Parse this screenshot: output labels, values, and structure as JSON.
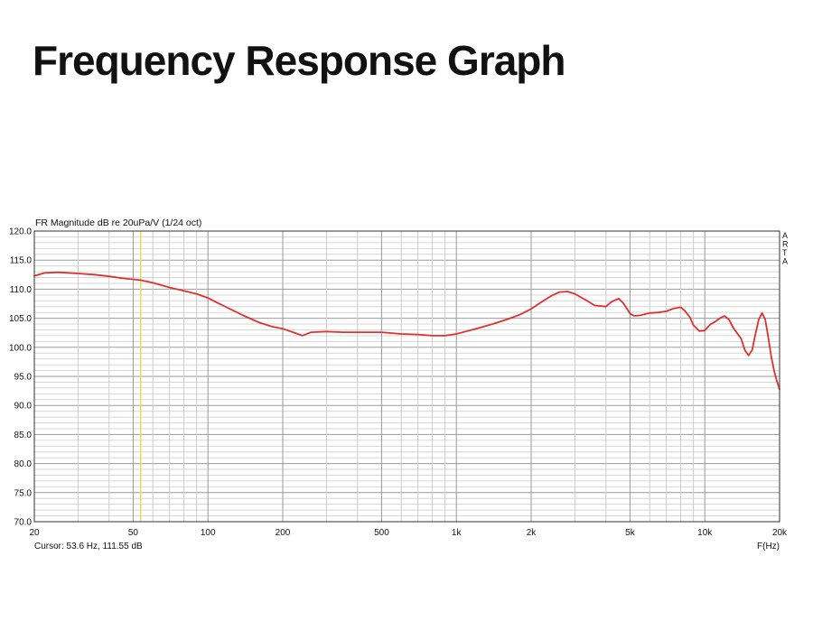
{
  "page": {
    "title": "Frequency Response Graph"
  },
  "chart_data": {
    "type": "line",
    "title": "FR Magnitude dB re 20uPa/V (1/24 oct)",
    "xlabel": "F(Hz)",
    "ylabel": "",
    "x_scale": "log",
    "xlim": [
      20,
      20000
    ],
    "ylim": [
      70,
      120
    ],
    "grid": true,
    "x_ticks": [
      {
        "value": 20,
        "label": "20"
      },
      {
        "value": 50,
        "label": "50"
      },
      {
        "value": 100,
        "label": "100"
      },
      {
        "value": 200,
        "label": "200"
      },
      {
        "value": 500,
        "label": "500"
      },
      {
        "value": 1000,
        "label": "1k"
      },
      {
        "value": 2000,
        "label": "2k"
      },
      {
        "value": 5000,
        "label": "5k"
      },
      {
        "value": 10000,
        "label": "10k"
      },
      {
        "value": 20000,
        "label": "20k"
      }
    ],
    "y_ticks": [
      {
        "value": 120,
        "label": "120.0"
      },
      {
        "value": 115,
        "label": "115.0"
      },
      {
        "value": 110,
        "label": "110.0"
      },
      {
        "value": 105,
        "label": "105.0"
      },
      {
        "value": 100,
        "label": "100.0"
      },
      {
        "value": 95,
        "label": "95.0"
      },
      {
        "value": 90,
        "label": "90.0"
      },
      {
        "value": 85,
        "label": "85.0"
      },
      {
        "value": 80,
        "label": "80.0"
      },
      {
        "value": 75,
        "label": "75.0"
      },
      {
        "value": 70,
        "label": "70.0"
      }
    ],
    "side_label": [
      "A",
      "R",
      "T",
      "A"
    ],
    "cursor": {
      "x": 53.6,
      "y": 111.55,
      "text": "Cursor: 53.6 Hz, 111.55 dB",
      "color": "#e8e050"
    },
    "series": [
      {
        "color": "#e03030",
        "x": [
          20,
          22,
          25,
          30,
          35,
          40,
          45,
          50,
          53.6,
          60,
          70,
          80,
          90,
          100,
          110,
          120,
          140,
          160,
          180,
          200,
          220,
          240,
          260,
          300,
          350,
          400,
          450,
          500,
          600,
          700,
          800,
          900,
          1000,
          1200,
          1400,
          1600,
          1800,
          2000,
          2200,
          2400,
          2600,
          2800,
          3000,
          3300,
          3600,
          4000,
          4200,
          4500,
          4700,
          5000,
          5200,
          5500,
          6000,
          6500,
          7000,
          7500,
          8000,
          8300,
          8700,
          9000,
          9500,
          10000,
          10500,
          11000,
          11500,
          12000,
          12500,
          13000,
          13500,
          14000,
          14500,
          15000,
          15500,
          16000,
          16500,
          17000,
          17500,
          18000,
          18500,
          19000,
          19500,
          20000
        ],
        "y": [
          112.3,
          112.8,
          112.9,
          112.7,
          112.5,
          112.2,
          111.9,
          111.7,
          111.55,
          111.1,
          110.3,
          109.7,
          109.2,
          108.5,
          107.6,
          106.8,
          105.4,
          104.3,
          103.6,
          103.2,
          102.6,
          102.0,
          102.6,
          102.7,
          102.6,
          102.6,
          102.6,
          102.6,
          102.3,
          102.2,
          102.0,
          102.0,
          102.3,
          103.2,
          104.0,
          104.8,
          105.6,
          106.6,
          107.8,
          108.8,
          109.5,
          109.6,
          109.2,
          108.2,
          107.2,
          107.0,
          107.8,
          108.4,
          107.6,
          105.8,
          105.4,
          105.5,
          105.9,
          106.0,
          106.2,
          106.7,
          106.9,
          106.3,
          105.2,
          103.8,
          102.8,
          102.9,
          103.9,
          104.4,
          105.0,
          105.4,
          104.8,
          103.4,
          102.4,
          101.5,
          99.5,
          98.6,
          99.5,
          102.3,
          104.8,
          105.9,
          104.8,
          101.8,
          98.5,
          96.0,
          94.2,
          92.8
        ]
      }
    ]
  }
}
